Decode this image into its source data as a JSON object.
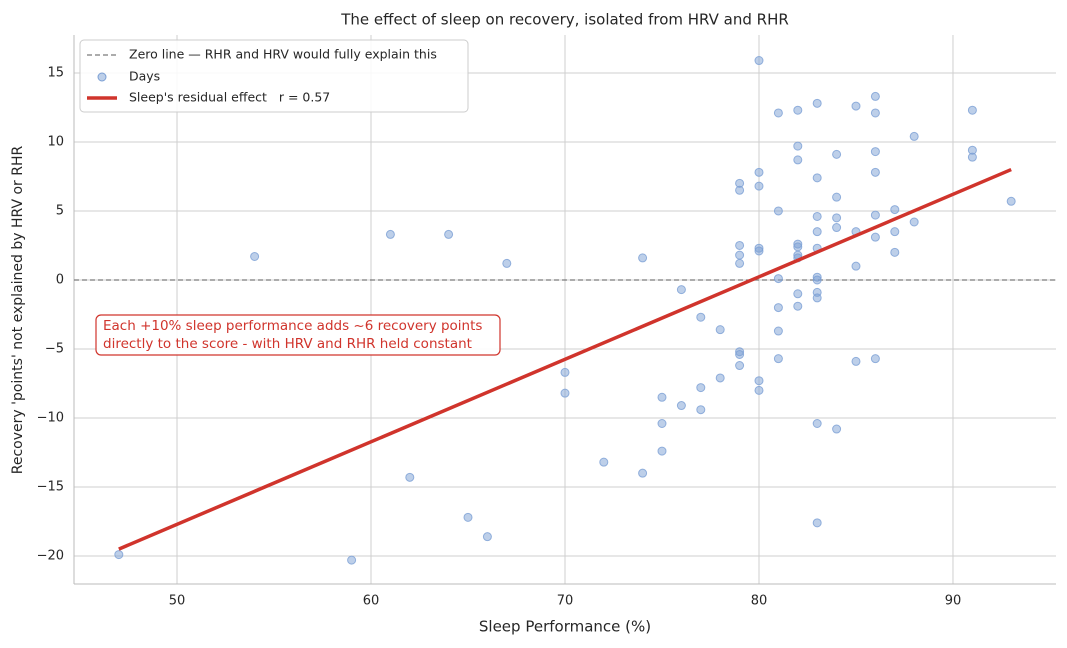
{
  "chart_data": {
    "type": "scatter",
    "title": "The effect of sleep on recovery, isolated from HRV and RHR",
    "x_label": "Sleep Performance (%)",
    "y_label": "Recovery 'points' not explained by HRV or RHR",
    "xlim": [
      44.69,
      95.31
    ],
    "ylim": [
      -22.03,
      17.75
    ],
    "xticks": [
      50,
      60,
      70,
      80,
      90
    ],
    "yticks": [
      {
        "value": -20,
        "label": "−20"
      },
      {
        "value": -15,
        "label": "−15"
      },
      {
        "value": -10,
        "label": "−10"
      },
      {
        "value": -5,
        "label": "−5"
      },
      0,
      5,
      10,
      15
    ],
    "grid": true,
    "legend": "upper left",
    "reference_line": {
      "name": "Zero line — RHR and HRV would fully explain this",
      "y": 0,
      "color": "#7a7a7a"
    },
    "series": [
      {
        "name": "Days",
        "color": "#7b9fd4",
        "x": [
          47,
          54,
          59,
          61,
          62,
          64,
          65,
          66,
          67,
          70,
          70,
          72,
          74,
          74,
          75,
          75,
          75,
          76,
          76,
          77,
          77,
          77,
          78,
          78,
          79,
          79,
          79,
          79,
          79,
          79,
          79,
          79,
          80,
          80,
          80,
          80,
          80,
          80,
          80,
          81,
          81,
          81,
          81,
          81,
          81,
          82,
          82,
          82,
          82,
          82,
          82,
          82,
          82,
          82,
          83,
          83,
          83,
          83,
          83,
          83,
          83,
          83,
          83,
          83,
          83,
          84,
          84,
          84,
          84,
          84,
          85,
          85,
          85,
          85,
          86,
          86,
          86,
          86,
          86,
          86,
          86,
          87,
          87,
          87,
          88,
          88,
          91,
          91,
          91,
          93
        ],
        "values": [
          -19.9,
          1.7,
          -20.3,
          3.3,
          -14.3,
          3.3,
          -17.2,
          -18.6,
          1.2,
          -6.7,
          -8.2,
          -13.2,
          1.6,
          -14.0,
          -8.5,
          -10.4,
          -12.4,
          -0.7,
          -9.1,
          -2.7,
          -7.8,
          -9.4,
          -3.6,
          -7.1,
          7.0,
          6.5,
          2.5,
          1.8,
          1.2,
          -5.2,
          -5.4,
          -6.2,
          15.9,
          7.8,
          6.8,
          2.3,
          2.1,
          -7.3,
          -8.0,
          12.1,
          5.0,
          0.1,
          -2.0,
          -3.7,
          -5.7,
          12.3,
          9.7,
          8.7,
          2.6,
          2.4,
          1.8,
          1.6,
          -1.0,
          -1.9,
          12.8,
          7.4,
          4.6,
          3.5,
          2.3,
          0.2,
          0.0,
          -0.9,
          -1.3,
          -10.4,
          -17.6,
          9.1,
          6.0,
          4.5,
          3.8,
          -10.8,
          12.6,
          3.5,
          1.0,
          -5.9,
          13.3,
          12.1,
          9.3,
          7.8,
          4.7,
          3.1,
          -5.7,
          5.1,
          3.5,
          2.0,
          10.4,
          4.2,
          12.3,
          9.4,
          8.9,
          5.7
        ]
      }
    ],
    "fit_line": {
      "name": "Sleep's residual effect   r = 0.57",
      "color": "#d0342c",
      "x": [
        47,
        93
      ],
      "values": [
        -19.5,
        8.0
      ]
    },
    "annotation": {
      "lines": [
        "Each +10% sleep performance adds ~6 recovery points",
        "directly to the score - with HRV and RHR held constant"
      ],
      "color": "#d0342c"
    }
  }
}
